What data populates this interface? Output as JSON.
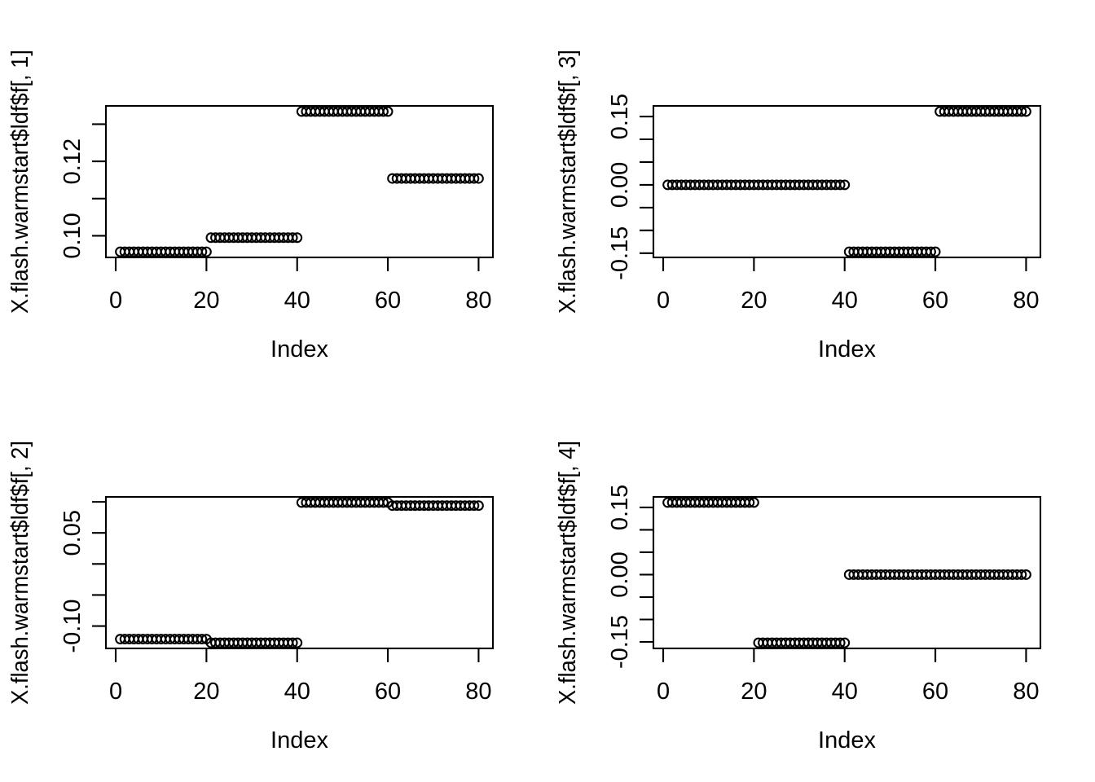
{
  "page": {
    "background": "#ffffff",
    "foreground": "#000000",
    "description": "2x2 grid of R base scatter plots of stepwise-constant factor values"
  },
  "chart_data": [
    {
      "type": "scatter",
      "panel": "top-left",
      "title": "",
      "xlabel": "Index",
      "ylabel": "X.flash.warmstart$ldf$f[, 1]",
      "marker": "open-circle",
      "color": "#000000",
      "grid": "off",
      "legend": "none",
      "xlim_data": [
        1,
        80
      ],
      "x_ticks": [
        {
          "value": 0,
          "label": "0"
        },
        {
          "value": 20,
          "label": "20"
        },
        {
          "value": 40,
          "label": "40"
        },
        {
          "value": 60,
          "label": "60"
        },
        {
          "value": 80,
          "label": "80"
        }
      ],
      "y_ticks": [
        {
          "value": 0.13,
          "label": ""
        },
        {
          "value": 0.12,
          "label": "0.12"
        },
        {
          "value": 0.11,
          "label": ""
        },
        {
          "value": 0.1,
          "label": "0.10"
        }
      ],
      "segments": [
        {
          "from": 1,
          "to": 20,
          "value": 0.0957
        },
        {
          "from": 21,
          "to": 40,
          "value": 0.0995
        },
        {
          "from": 41,
          "to": 60,
          "value": 0.1334
        },
        {
          "from": 61,
          "to": 80,
          "value": 0.1154
        }
      ]
    },
    {
      "type": "scatter",
      "panel": "top-right",
      "title": "",
      "xlabel": "Index",
      "ylabel": "X.flash.warmstart$ldf$f[, 3]",
      "marker": "open-circle",
      "color": "#000000",
      "grid": "off",
      "legend": "none",
      "xlim_data": [
        1,
        80
      ],
      "x_ticks": [
        {
          "value": 0,
          "label": "0"
        },
        {
          "value": 20,
          "label": "20"
        },
        {
          "value": 40,
          "label": "40"
        },
        {
          "value": 60,
          "label": "60"
        },
        {
          "value": 80,
          "label": "80"
        }
      ],
      "y_ticks": [
        {
          "value": 0.15,
          "label": "0.15"
        },
        {
          "value": 0.1,
          "label": ""
        },
        {
          "value": 0.05,
          "label": ""
        },
        {
          "value": 0.0,
          "label": "0.00"
        },
        {
          "value": -0.05,
          "label": ""
        },
        {
          "value": -0.1,
          "label": ""
        },
        {
          "value": -0.15,
          "label": "-0.15"
        }
      ],
      "segments": [
        {
          "from": 1,
          "to": 40,
          "value": 0.0
        },
        {
          "from": 41,
          "to": 60,
          "value": -0.147
        },
        {
          "from": 61,
          "to": 80,
          "value": 0.161
        }
      ]
    },
    {
      "type": "scatter",
      "panel": "bottom-left",
      "title": "",
      "xlabel": "Index",
      "ylabel": "X.flash.warmstart$ldf$f[, 2]",
      "marker": "open-circle",
      "color": "#000000",
      "grid": "off",
      "legend": "none",
      "xlim_data": [
        1,
        80
      ],
      "x_ticks": [
        {
          "value": 0,
          "label": "0"
        },
        {
          "value": 20,
          "label": "20"
        },
        {
          "value": 40,
          "label": "40"
        },
        {
          "value": 60,
          "label": "60"
        },
        {
          "value": 80,
          "label": "80"
        }
      ],
      "y_ticks": [
        {
          "value": 0.1,
          "label": ""
        },
        {
          "value": 0.05,
          "label": "0.05"
        },
        {
          "value": 0.0,
          "label": ""
        },
        {
          "value": -0.05,
          "label": ""
        },
        {
          "value": -0.1,
          "label": "-0.10"
        }
      ],
      "segments": [
        {
          "from": 1,
          "to": 20,
          "value": -0.121
        },
        {
          "from": 21,
          "to": 40,
          "value": -0.127
        },
        {
          "from": 41,
          "to": 60,
          "value": 0.099
        },
        {
          "from": 61,
          "to": 80,
          "value": 0.094
        }
      ]
    },
    {
      "type": "scatter",
      "panel": "bottom-right",
      "title": "",
      "xlabel": "Index",
      "ylabel": "X.flash.warmstart$ldf$f[, 4]",
      "marker": "open-circle",
      "color": "#000000",
      "grid": "off",
      "legend": "none",
      "xlim_data": [
        1,
        80
      ],
      "x_ticks": [
        {
          "value": 0,
          "label": "0"
        },
        {
          "value": 20,
          "label": "20"
        },
        {
          "value": 40,
          "label": "40"
        },
        {
          "value": 60,
          "label": "60"
        },
        {
          "value": 80,
          "label": "80"
        }
      ],
      "y_ticks": [
        {
          "value": 0.15,
          "label": "0.15"
        },
        {
          "value": 0.1,
          "label": ""
        },
        {
          "value": 0.05,
          "label": ""
        },
        {
          "value": 0.0,
          "label": "0.00"
        },
        {
          "value": -0.05,
          "label": ""
        },
        {
          "value": -0.1,
          "label": ""
        },
        {
          "value": -0.15,
          "label": "-0.15"
        }
      ],
      "segments": [
        {
          "from": 1,
          "to": 20,
          "value": 0.161
        },
        {
          "from": 21,
          "to": 40,
          "value": -0.152
        },
        {
          "from": 41,
          "to": 80,
          "value": 0.0
        }
      ]
    }
  ]
}
